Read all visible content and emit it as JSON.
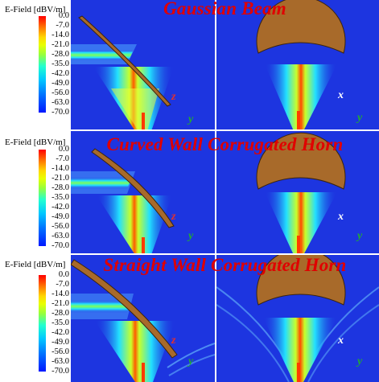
{
  "colorbar": {
    "title": "E-Field [dBV/m]",
    "ticks": [
      "0.0",
      "-7.0",
      "-14.0",
      "-21.0",
      "-28.0",
      "-35.0",
      "-42.0",
      "-49.0",
      "-56.0",
      "-63.0",
      "-70.0"
    ]
  },
  "rows": [
    {
      "title": "Gaussian Beam",
      "left_axes": [
        "z",
        "y"
      ],
      "right_axes": [
        "x",
        "y"
      ]
    },
    {
      "title": "Curved Wall Corrugated Horn",
      "left_axes": [
        "z",
        "y"
      ],
      "right_axes": [
        "x",
        "y"
      ]
    },
    {
      "title": "Straight Wall Corrugated Horn",
      "left_axes": [
        "z",
        "y"
      ],
      "right_axes": [
        "x",
        "y"
      ]
    }
  ],
  "colors": {
    "background": "#1d35e0",
    "title": "#e00000",
    "axis_z": "#e03030",
    "axis_y": "#22aa33",
    "axis_x": "#ffffff",
    "reflector": "#a86a2a"
  }
}
